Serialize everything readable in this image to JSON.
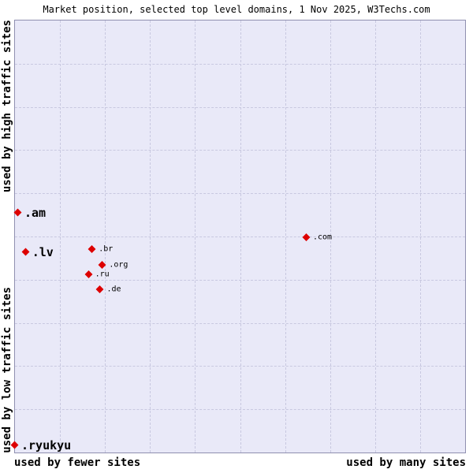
{
  "title": "Market position, selected top level domains, 1 Nov 2025, W3Techs.com",
  "axes": {
    "left_top": "used by high traffic sites",
    "left_bottom": "used by low traffic sites",
    "bottom_left": "used by fewer sites",
    "bottom_right": "used by many sites"
  },
  "colors": {
    "plot_bg": "#e9e9f8",
    "grid": "#c8c8e0",
    "border": "#8f8fb0",
    "point": "#dd0000"
  },
  "chart_data": {
    "type": "scatter",
    "title": "Market position, selected top level domains, 1 Nov 2025, W3Techs.com",
    "xlabel_left": "used by fewer sites",
    "xlabel_right": "used by many sites",
    "ylabel_top": "used by high traffic sites",
    "ylabel_bottom": "used by low traffic sites",
    "x_axis_meaning": "number of sites using the domain (qualitative, fewer to many)",
    "y_axis_meaning": "traffic level of sites using the domain (qualitative, high at top to low at bottom)",
    "grid": {
      "rows": 10,
      "cols": 10,
      "style": "dashed"
    },
    "marker": "diamond",
    "points": [
      {
        "label": ".am",
        "x_pct": 0.7,
        "y_pct": 44.5,
        "label_size": "large"
      },
      {
        "label": ".lv",
        "x_pct": 2.4,
        "y_pct": 53.6,
        "label_size": "large"
      },
      {
        "label": ".br",
        "x_pct": 17.2,
        "y_pct": 52.9,
        "label_size": "small"
      },
      {
        "label": ".com",
        "x_pct": 64.8,
        "y_pct": 50.2,
        "label_size": "small"
      },
      {
        "label": ".org",
        "x_pct": 19.5,
        "y_pct": 56.5,
        "label_size": "small"
      },
      {
        "label": ".ru",
        "x_pct": 16.4,
        "y_pct": 58.7,
        "label_size": "small"
      },
      {
        "label": ".de",
        "x_pct": 19.0,
        "y_pct": 62.2,
        "label_size": "small"
      },
      {
        "label": ".ryukyu",
        "x_pct": 0.0,
        "y_pct": 98.3,
        "label_size": "large"
      }
    ]
  }
}
